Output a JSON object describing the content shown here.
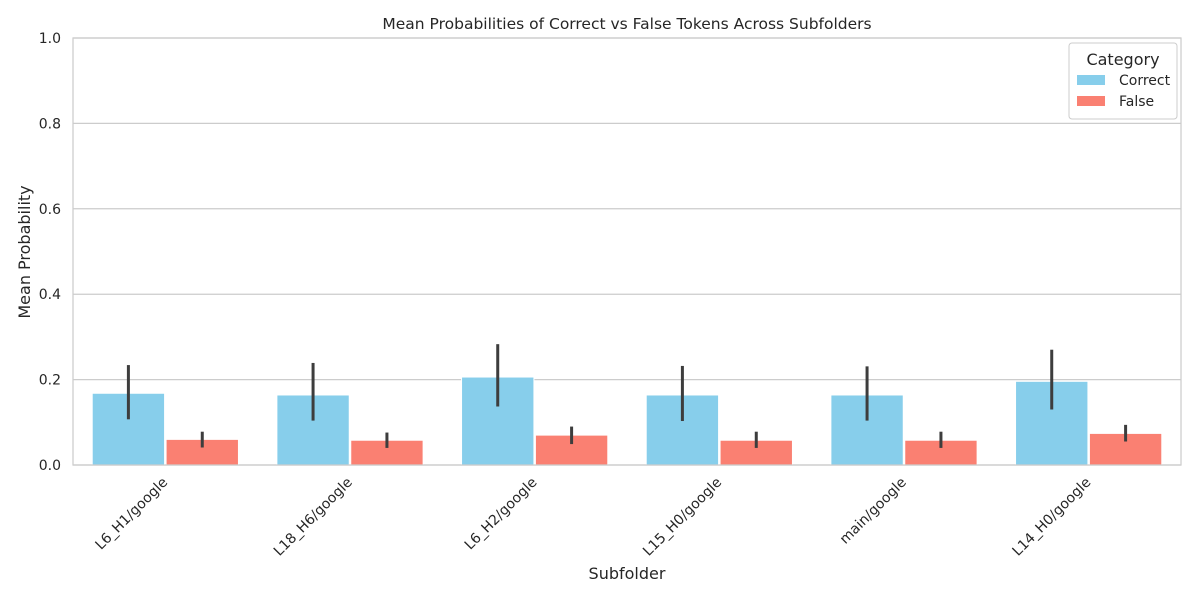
{
  "chart_data": {
    "type": "bar",
    "title": "Mean Probabilities of Correct vs False Tokens Across Subfolders",
    "xlabel": "Subfolder",
    "ylabel": "Mean Probability",
    "ylim": [
      0,
      1.0
    ],
    "yticks": [
      "0.0",
      "0.2",
      "0.4",
      "0.6",
      "0.8",
      "1.0"
    ],
    "grid": true,
    "legend_position": "top-right",
    "legend_title": "Category",
    "categories": [
      "L6_H1/google",
      "L18_H6/google",
      "L6_H2/google",
      "L15_H0/google",
      "main/google",
      "L14_H0/google"
    ],
    "series": [
      {
        "name": "Correct",
        "color": "#87CEEB",
        "values": [
          0.168,
          0.164,
          0.206,
          0.164,
          0.164,
          0.196
        ],
        "ci_low": [
          0.107,
          0.104,
          0.137,
          0.103,
          0.104,
          0.13
        ],
        "ci_high": [
          0.234,
          0.239,
          0.283,
          0.232,
          0.231,
          0.27
        ]
      },
      {
        "name": "False",
        "color": "#FA8072",
        "values": [
          0.06,
          0.058,
          0.07,
          0.058,
          0.058,
          0.074
        ],
        "ci_low": [
          0.041,
          0.04,
          0.049,
          0.04,
          0.04,
          0.055
        ],
        "ci_high": [
          0.078,
          0.076,
          0.09,
          0.078,
          0.078,
          0.094
        ]
      }
    ]
  }
}
